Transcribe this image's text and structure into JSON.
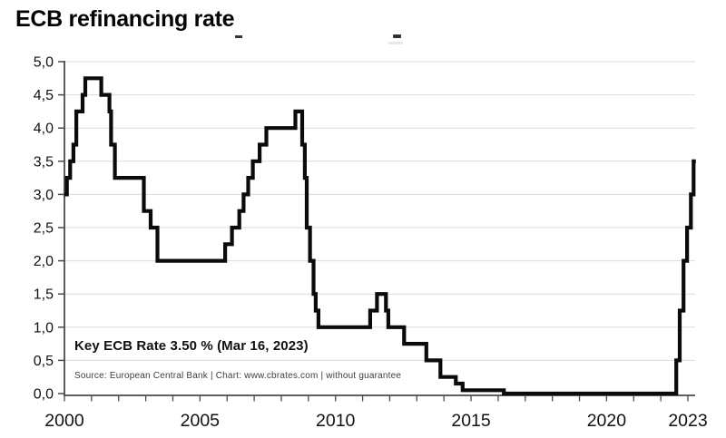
{
  "page": {
    "title": "ECB refinancing rate"
  },
  "colors": {
    "background": "#ffffff",
    "line": "#0b0b0b",
    "grid": "#dcdcdc",
    "axis": "#4a4a4a",
    "tick_label": "#111111",
    "source_text": "#3d3d3d"
  },
  "chart_data": {
    "type": "line",
    "step": true,
    "title": "ECB refinancing rate",
    "xlabel": "",
    "ylabel": "",
    "xlim": [
      2000,
      2023.35
    ],
    "ylim": [
      0,
      5
    ],
    "grid": true,
    "legend": false,
    "annotation": "Key ECB Rate 3.50 % (Mar 16, 2023)",
    "source": "Source: European Central Bank | Chart: www.cbrates.com | without guarantee",
    "y_ticks": [
      {
        "v": 5.0,
        "label": "5,0"
      },
      {
        "v": 4.5,
        "label": "4,5"
      },
      {
        "v": 4.0,
        "label": "4,0"
      },
      {
        "v": 3.5,
        "label": "3,5"
      },
      {
        "v": 3.0,
        "label": "3,0"
      },
      {
        "v": 2.5,
        "label": "2,5"
      },
      {
        "v": 2.0,
        "label": "2,0"
      },
      {
        "v": 1.5,
        "label": "1,5"
      },
      {
        "v": 1.0,
        "label": "1,0"
      },
      {
        "v": 0.5,
        "label": "0,5"
      },
      {
        "v": 0.0,
        "label": "0,0"
      }
    ],
    "x_major_ticks": [
      {
        "x": 2000,
        "label": "2000"
      },
      {
        "x": 2005,
        "label": "2005"
      },
      {
        "x": 2010,
        "label": "2010"
      },
      {
        "x": 2015,
        "label": "2015"
      },
      {
        "x": 2020,
        "label": "2020"
      },
      {
        "x": 2023,
        "label": "2023"
      }
    ],
    "x_minor_tick_years": {
      "from": 2000,
      "to": 2023,
      "step": 1
    },
    "series": [
      {
        "name": "ECB refinancing rate",
        "color": "#0b0b0b",
        "points": [
          [
            2000.0,
            3.0
          ],
          [
            2000.09,
            3.25
          ],
          [
            2000.21,
            3.5
          ],
          [
            2000.33,
            3.75
          ],
          [
            2000.44,
            4.25
          ],
          [
            2000.67,
            4.5
          ],
          [
            2000.77,
            4.75
          ],
          [
            2001.36,
            4.5
          ],
          [
            2001.66,
            4.25
          ],
          [
            2001.72,
            3.75
          ],
          [
            2001.86,
            3.25
          ],
          [
            2002.93,
            2.75
          ],
          [
            2003.18,
            2.5
          ],
          [
            2003.43,
            2.0
          ],
          [
            2005.93,
            2.25
          ],
          [
            2006.18,
            2.5
          ],
          [
            2006.45,
            2.75
          ],
          [
            2006.61,
            3.0
          ],
          [
            2006.78,
            3.25
          ],
          [
            2006.95,
            3.5
          ],
          [
            2007.2,
            3.75
          ],
          [
            2007.45,
            4.0
          ],
          [
            2008.52,
            4.25
          ],
          [
            2008.77,
            3.75
          ],
          [
            2008.87,
            3.25
          ],
          [
            2008.94,
            2.5
          ],
          [
            2009.06,
            2.0
          ],
          [
            2009.19,
            1.5
          ],
          [
            2009.27,
            1.25
          ],
          [
            2009.37,
            1.0
          ],
          [
            2011.28,
            1.25
          ],
          [
            2011.53,
            1.5
          ],
          [
            2011.86,
            1.25
          ],
          [
            2011.95,
            1.0
          ],
          [
            2012.53,
            0.75
          ],
          [
            2013.35,
            0.5
          ],
          [
            2013.87,
            0.25
          ],
          [
            2014.44,
            0.15
          ],
          [
            2014.69,
            0.05
          ],
          [
            2016.21,
            0.0
          ],
          [
            2022.57,
            0.5
          ],
          [
            2022.7,
            1.25
          ],
          [
            2022.84,
            2.0
          ],
          [
            2022.97,
            2.5
          ],
          [
            2023.11,
            3.0
          ],
          [
            2023.21,
            3.5
          ]
        ]
      }
    ]
  }
}
